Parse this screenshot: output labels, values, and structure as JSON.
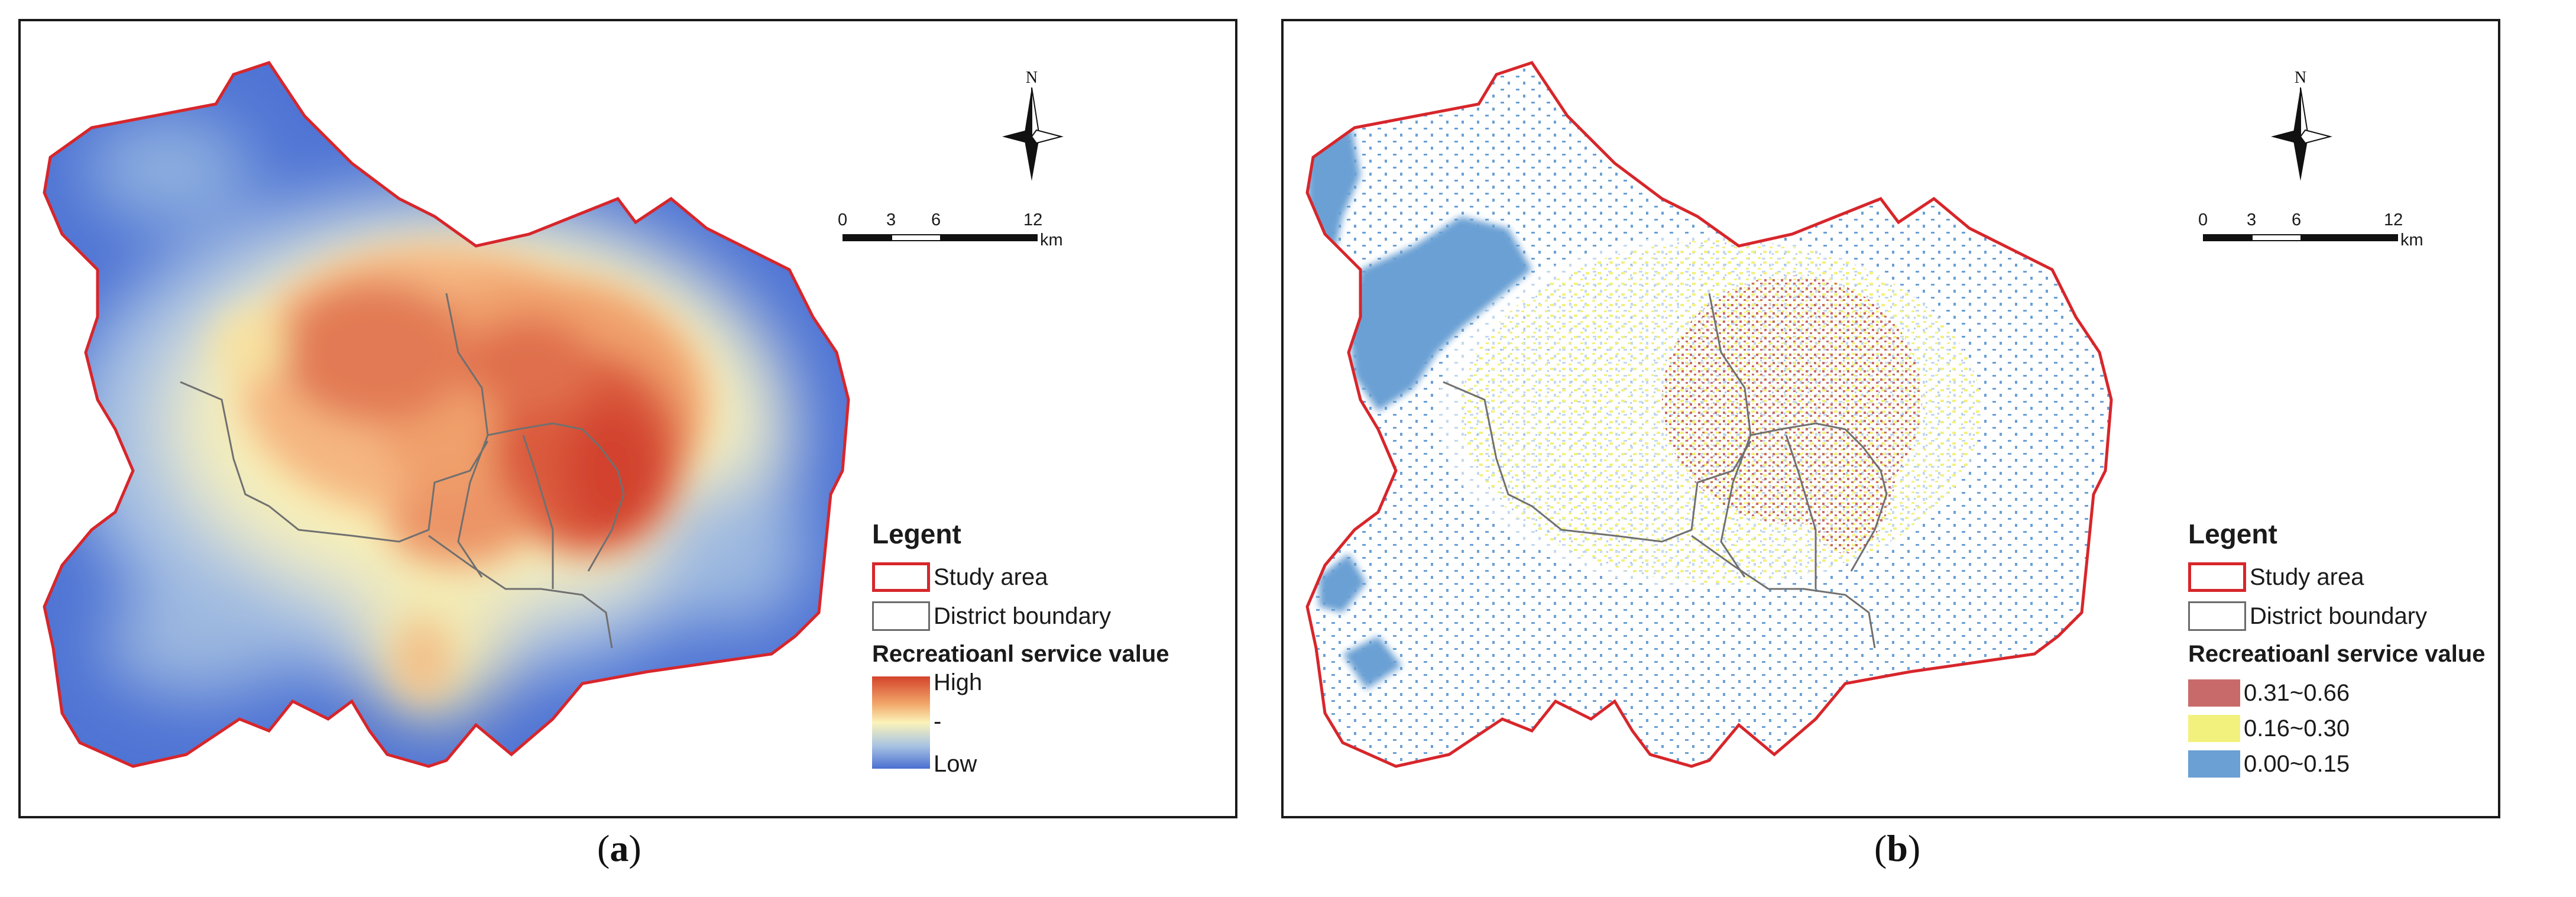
{
  "panels": [
    {
      "id": "a",
      "caption_letter": "a",
      "north_label": "N",
      "scale": {
        "ticks": [
          "0",
          "3",
          "6",
          "12"
        ],
        "unit": "km"
      },
      "legend": {
        "title": "Legent",
        "items": [
          {
            "label": "Study area",
            "color": "#d7262b"
          },
          {
            "label": "District boundary",
            "color": "#6b6b6b"
          }
        ],
        "value_title": "Recreatioanl service value",
        "gradient": {
          "high_label": "High",
          "mid_label": "-",
          "low_label": "Low",
          "colors": [
            "#d4432b",
            "#f2a86a",
            "#fbf3b9",
            "#a9c4e2",
            "#4a6fd1"
          ]
        }
      }
    },
    {
      "id": "b",
      "caption_letter": "b",
      "north_label": "N",
      "scale": {
        "ticks": [
          "0",
          "3",
          "6",
          "12"
        ],
        "unit": "km"
      },
      "legend": {
        "title": "Legent",
        "items": [
          {
            "label": "Study area",
            "color": "#d7262b"
          },
          {
            "label": "District boundary",
            "color": "#6b6b6b"
          }
        ],
        "value_title": "Recreatioanl service value",
        "classes": [
          {
            "label": "0.31~0.66",
            "color": "#c96a6a"
          },
          {
            "label": "0.16~0.30",
            "color": "#f3f17e"
          },
          {
            "label": "0.00~0.15",
            "color": "#6aa0d4"
          }
        ]
      }
    }
  ]
}
